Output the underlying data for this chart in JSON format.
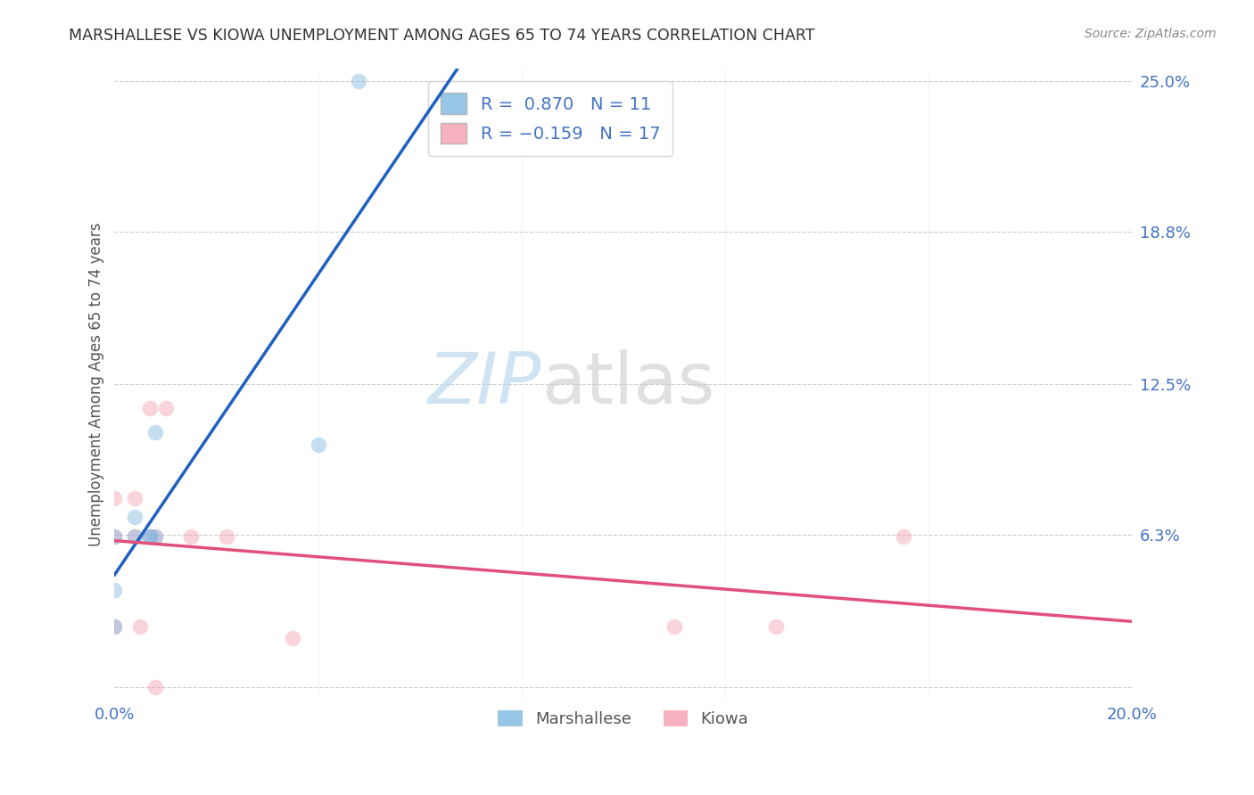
{
  "title": "MARSHALLESE VS KIOWA UNEMPLOYMENT AMONG AGES 65 TO 74 YEARS CORRELATION CHART",
  "source": "Source: ZipAtlas.com",
  "ylabel": "Unemployment Among Ages 65 to 74 years",
  "xlim": [
    0.0,
    0.2
  ],
  "ylim": [
    -0.005,
    0.255
  ],
  "xticks": [
    0.0,
    0.04,
    0.08,
    0.12,
    0.16,
    0.2
  ],
  "xticklabels": [
    "0.0%",
    "",
    "",
    "",
    "",
    "20.0%"
  ],
  "yticks_right": [
    0.0,
    0.063,
    0.125,
    0.188,
    0.25
  ],
  "ytick_labels_right": [
    "",
    "6.3%",
    "12.5%",
    "18.8%",
    "25.0%"
  ],
  "marshallese_color": "#7fb8e0",
  "kiowa_color": "#f4a0b0",
  "marshallese_line_color": "#2060c0",
  "kiowa_line_color": "#e0507a",
  "R_marshallese": 0.87,
  "N_marshallese": 11,
  "R_kiowa": -0.159,
  "N_kiowa": 17,
  "marshallese_x": [
    0.0,
    0.0,
    0.0,
    0.004,
    0.004,
    0.007,
    0.007,
    0.008,
    0.008,
    0.04,
    0.048
  ],
  "marshallese_y": [
    0.025,
    0.04,
    0.062,
    0.062,
    0.07,
    0.062,
    0.062,
    0.062,
    0.105,
    0.1,
    0.25
  ],
  "kiowa_x": [
    0.0,
    0.0,
    0.0,
    0.004,
    0.004,
    0.005,
    0.007,
    0.007,
    0.008,
    0.008,
    0.01,
    0.015,
    0.022,
    0.035,
    0.11,
    0.13,
    0.155
  ],
  "kiowa_y": [
    0.025,
    0.062,
    0.078,
    0.062,
    0.078,
    0.025,
    0.062,
    0.115,
    0.062,
    0.0,
    0.115,
    0.062,
    0.062,
    0.02,
    0.025,
    0.025,
    0.062
  ],
  "watermark_zip": "ZIP",
  "watermark_atlas": "atlas",
  "background_color": "#ffffff",
  "grid_color": "#cccccc",
  "title_color": "#333333",
  "axis_label_color": "#555555",
  "tick_label_color": "#4472c4",
  "scatter_size": 160,
  "scatter_alpha": 0.45,
  "line_width": 2.5
}
